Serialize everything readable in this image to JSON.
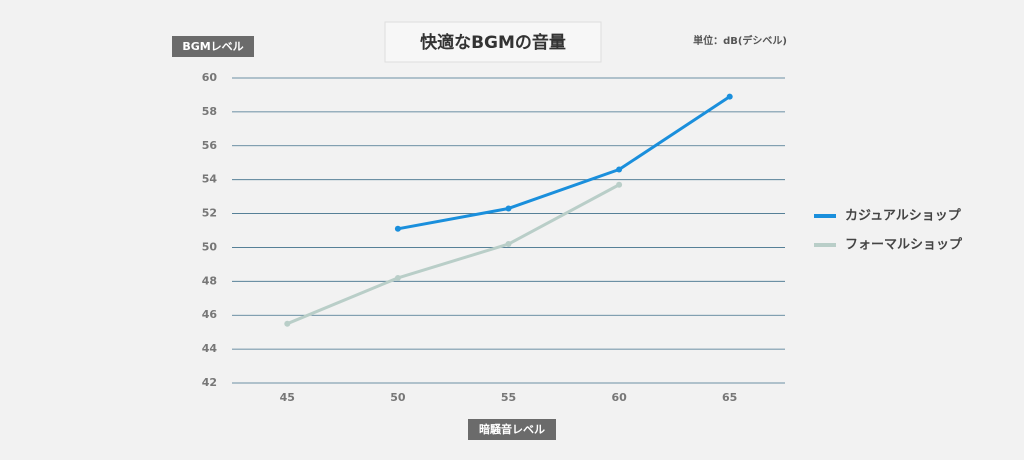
{
  "chart_data": {
    "type": "line",
    "title": "快適なBGMの音量",
    "unit_note": "単位：dB(デシベル)",
    "y_label": "BGMレベル",
    "x_label": "暗騒音レベル",
    "x": [
      45,
      50,
      55,
      60,
      65
    ],
    "xlim": [
      42.5,
      67.5
    ],
    "xticks": [
      45,
      50,
      55,
      60,
      65
    ],
    "ylim": [
      42,
      60
    ],
    "yticks": [
      42,
      44,
      46,
      48,
      50,
      52,
      54,
      56,
      58,
      60
    ],
    "grid": true,
    "legend": "right",
    "series": [
      {
        "name": "カジュアルショップ",
        "color": "#1a8fdc",
        "values": [
          null,
          51.1,
          52.3,
          54.6,
          58.9
        ]
      },
      {
        "name": "フォーマルショップ",
        "color": "#b9cec8",
        "values": [
          45.5,
          48.2,
          50.2,
          53.7,
          null
        ]
      }
    ]
  }
}
